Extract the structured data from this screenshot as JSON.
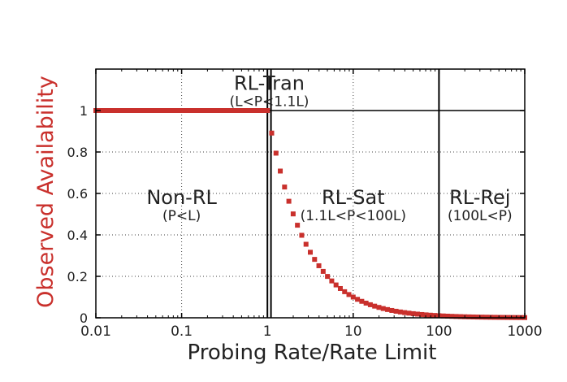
{
  "chart_data": {
    "type": "scatter",
    "xscale": "log",
    "xlim": [
      0.01,
      1000
    ],
    "ylim": [
      0,
      1.2
    ],
    "xlabel": "Probing Rate/Rate Limit",
    "ylabel": "Observed Availability",
    "x_ticks": [
      {
        "value": 0.01,
        "label": "0.01"
      },
      {
        "value": 0.1,
        "label": "0.1"
      },
      {
        "value": 1,
        "label": "1"
      },
      {
        "value": 10,
        "label": "10"
      },
      {
        "value": 100,
        "label": "100"
      },
      {
        "value": 1000,
        "label": "1000"
      }
    ],
    "y_ticks": [
      {
        "value": 0,
        "label": "0"
      },
      {
        "value": 0.2,
        "label": "0.2"
      },
      {
        "value": 0.4,
        "label": "0.4"
      },
      {
        "value": 0.6,
        "label": "0.6"
      },
      {
        "value": 0.8,
        "label": "0.8"
      },
      {
        "value": 1,
        "label": "1"
      }
    ],
    "grid": true,
    "reference_line": {
      "y": 1
    },
    "region_boundaries": [
      1,
      1.1,
      100
    ],
    "regions": [
      {
        "name": "Non-RL",
        "condition": "(P<L)",
        "x": 0.1,
        "y": 0.55
      },
      {
        "name": "RL-Tran",
        "condition": "(L<P<1.1L)",
        "x": 1.05,
        "y": 1.1
      },
      {
        "name": "RL-Sat",
        "condition": "(1.1L<P<100L)",
        "x": 10,
        "y": 0.55
      },
      {
        "name": "RL-Rej",
        "condition": "(100L<P)",
        "x": 300,
        "y": 0.55
      }
    ],
    "series": [
      {
        "name": "Observed Availability",
        "color": "#c9302c",
        "rule": "availability = 1 for P <= L, otherwise L / P",
        "x_range": [
          0.01,
          1000
        ],
        "log_step": 0.05
      }
    ]
  }
}
